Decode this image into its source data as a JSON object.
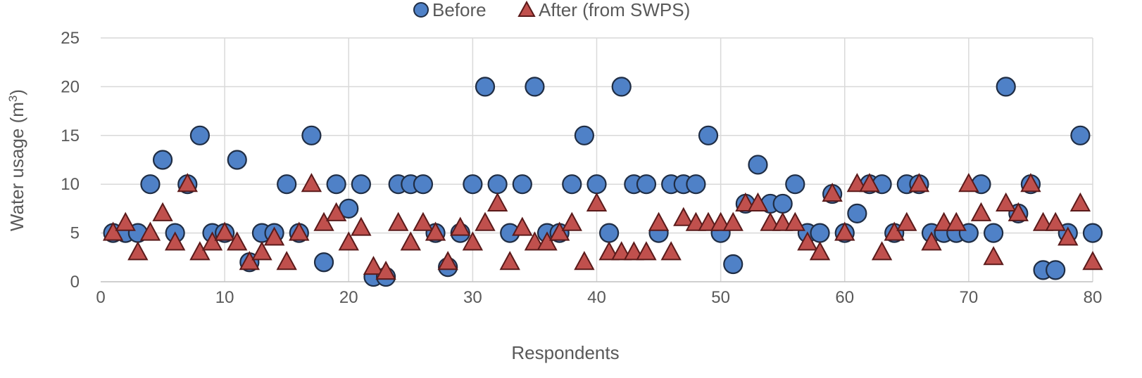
{
  "chart_data": {
    "type": "scatter",
    "xlabel": "Respondents",
    "ylabel_text": "Water usage (m",
    "ylabel_sup": "3",
    "ylabel_close": ")",
    "xlim": [
      0,
      80
    ],
    "ylim": [
      0,
      25
    ],
    "xticks": [
      0,
      10,
      20,
      30,
      40,
      50,
      60,
      70,
      80
    ],
    "yticks": [
      0,
      5,
      10,
      15,
      20,
      25
    ],
    "grid": true,
    "legend_position": "top-center",
    "colors": {
      "before": "#4F81C7",
      "after": "#C0504D",
      "outline": "#1F2D44",
      "grid": "#D9D9D9"
    },
    "series": [
      {
        "name": "Before",
        "marker": "circle",
        "x": [
          1,
          2,
          3,
          4,
          5,
          6,
          7,
          8,
          9,
          10,
          11,
          12,
          13,
          14,
          15,
          16,
          17,
          18,
          19,
          20,
          21,
          22,
          23,
          24,
          25,
          26,
          27,
          28,
          29,
          30,
          31,
          32,
          33,
          34,
          35,
          36,
          37,
          38,
          39,
          40,
          41,
          42,
          43,
          44,
          45,
          46,
          47,
          48,
          49,
          50,
          51,
          52,
          53,
          54,
          55,
          56,
          57,
          58,
          59,
          60,
          61,
          62,
          63,
          64,
          65,
          66,
          67,
          68,
          69,
          70,
          71,
          72,
          73,
          74,
          75,
          76,
          77,
          78,
          79,
          80
        ],
        "y": [
          5,
          5,
          5,
          10,
          12.5,
          5,
          10,
          15,
          5,
          5,
          12.5,
          2,
          5,
          5,
          10,
          5,
          15,
          2,
          10,
          7.5,
          10,
          0.5,
          0.5,
          10,
          10,
          10,
          5,
          1.5,
          5,
          10,
          20,
          10,
          5,
          10,
          20,
          5,
          5,
          10,
          15,
          10,
          5,
          20,
          10,
          10,
          5,
          10,
          10,
          10,
          15,
          5,
          1.8,
          8,
          12,
          8,
          8,
          10,
          5,
          5,
          9,
          5,
          7,
          10,
          10,
          5,
          10,
          10,
          5,
          5,
          5,
          5,
          10,
          5,
          20,
          7,
          10,
          1.2,
          1.2,
          5,
          15,
          5
        ]
      },
      {
        "name": "After (from SWPS)",
        "marker": "triangle",
        "x": [
          1,
          2,
          3,
          4,
          5,
          6,
          7,
          8,
          9,
          10,
          11,
          12,
          13,
          14,
          15,
          16,
          17,
          18,
          19,
          20,
          21,
          22,
          23,
          24,
          25,
          26,
          27,
          28,
          29,
          30,
          31,
          32,
          33,
          34,
          35,
          36,
          37,
          38,
          39,
          40,
          41,
          42,
          43,
          44,
          45,
          46,
          47,
          48,
          49,
          50,
          51,
          52,
          53,
          54,
          55,
          56,
          57,
          58,
          59,
          60,
          61,
          62,
          63,
          64,
          65,
          66,
          67,
          68,
          69,
          70,
          71,
          72,
          73,
          74,
          75,
          76,
          77,
          78,
          79,
          80
        ],
        "y": [
          5,
          6,
          3,
          5,
          7,
          4,
          10,
          3,
          4,
          5,
          4,
          2,
          3,
          4.5,
          2,
          5,
          10,
          6,
          7,
          4,
          5.5,
          1.5,
          1,
          6,
          4,
          6,
          5,
          2,
          5.5,
          4,
          6,
          8,
          2,
          5.5,
          4,
          4,
          5,
          6,
          2,
          8,
          3,
          3,
          3,
          3,
          6,
          3,
          6.5,
          6,
          6,
          6,
          6,
          8,
          8,
          6,
          6,
          6,
          4,
          3,
          9,
          5,
          10,
          10,
          3,
          5,
          6,
          10,
          4,
          6,
          6,
          10,
          7,
          2.5,
          8,
          7,
          10,
          6,
          6,
          4.5,
          8,
          2
        ]
      }
    ]
  }
}
